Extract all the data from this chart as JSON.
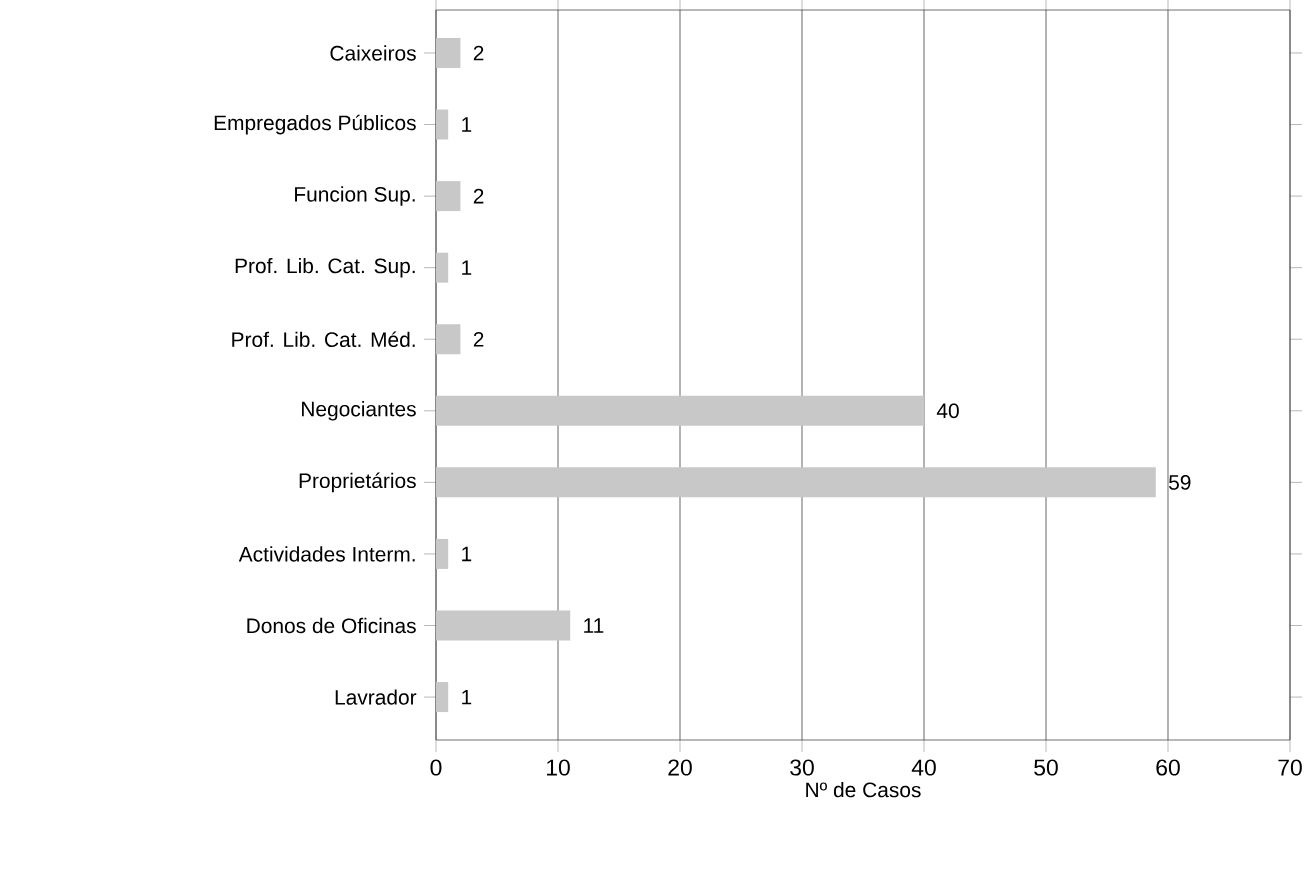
{
  "chart_data": {
    "type": "bar",
    "orientation": "horizontal",
    "xlabel": "Nº de Casos",
    "categories": [
      "Caixeiros",
      "Empregados Públicos",
      "Funcion Sup.",
      "Prof. Lib. Cat. Sup.",
      "Prof. Lib. Cat. Méd.",
      "Negociantes",
      "Proprietários",
      "Actividades Interm.",
      "Donos de Oficinas",
      "Lavrador"
    ],
    "values": [
      2,
      1,
      2,
      1,
      2,
      40,
      59,
      1,
      11,
      1
    ],
    "color": "#c8c8c8",
    "xlim": [
      0,
      70
    ],
    "xticks": [
      0,
      10,
      20,
      30,
      40,
      50,
      60,
      70
    ],
    "grid": "x",
    "data_labels": true
  }
}
